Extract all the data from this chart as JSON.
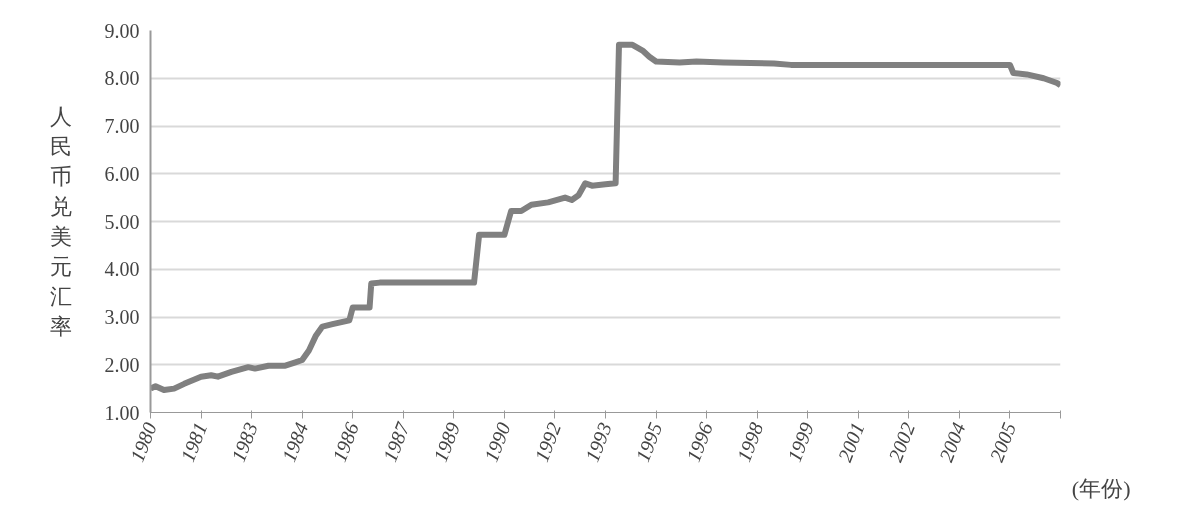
{
  "chart_data": {
    "type": "line",
    "ylabel": "人民币兑美元汇率",
    "xlabel": "(年份)",
    "x": [
      1980.0,
      1980.15,
      1980.4,
      1980.7,
      1981.0,
      1981.5,
      1981.8,
      1982.0,
      1982.4,
      1982.9,
      1983.1,
      1983.5,
      1984.0,
      1984.3,
      1984.5,
      1984.7,
      1984.9,
      1985.1,
      1985.4,
      1985.9,
      1986.0,
      1986.5,
      1986.55,
      1986.8,
      1989.6,
      1989.75,
      1990.5,
      1990.7,
      1991.0,
      1991.3,
      1991.8,
      1992.3,
      1992.5,
      1992.7,
      1992.9,
      1993.1,
      1993.5,
      1993.8,
      1993.9,
      1994.3,
      1994.6,
      1994.8,
      1995.0,
      1995.7,
      1996.2,
      1997.0,
      1998.5,
      1999.0,
      2005.5,
      2005.6,
      2006.0,
      2006.5,
      2006.9,
      2007.0
    ],
    "series": [
      {
        "color": "#808080",
        "values": [
          1.5,
          1.55,
          1.47,
          1.5,
          1.6,
          1.75,
          1.78,
          1.75,
          1.85,
          1.95,
          1.92,
          1.98,
          1.98,
          2.05,
          2.1,
          2.3,
          2.6,
          2.8,
          2.85,
          2.93,
          3.2,
          3.2,
          3.7,
          3.72,
          3.72,
          4.72,
          4.72,
          5.22,
          5.22,
          5.35,
          5.4,
          5.5,
          5.45,
          5.55,
          5.8,
          5.75,
          5.78,
          5.8,
          8.7,
          8.7,
          8.58,
          8.45,
          8.35,
          8.33,
          8.35,
          8.33,
          8.31,
          8.28,
          8.28,
          8.11,
          8.08,
          8.0,
          7.9,
          7.85
        ]
      }
    ],
    "xlim": [
      1980,
      2007
    ],
    "ylim": [
      1,
      9
    ],
    "xticks": [
      {
        "value": 1980,
        "label": "1980"
      },
      {
        "value": 1981.5,
        "label": "1981"
      },
      {
        "value": 1983,
        "label": "1983"
      },
      {
        "value": 1984.5,
        "label": "1984"
      },
      {
        "value": 1986,
        "label": "1986"
      },
      {
        "value": 1987.5,
        "label": "1987"
      },
      {
        "value": 1989,
        "label": "1989"
      },
      {
        "value": 1990.5,
        "label": "1990"
      },
      {
        "value": 1992,
        "label": "1992"
      },
      {
        "value": 1993.5,
        "label": "1993"
      },
      {
        "value": 1995,
        "label": "1995"
      },
      {
        "value": 1996.5,
        "label": "1996"
      },
      {
        "value": 1998,
        "label": "1998"
      },
      {
        "value": 1999.5,
        "label": "1999"
      },
      {
        "value": 2001,
        "label": "2001"
      },
      {
        "value": 2002.5,
        "label": "2002"
      },
      {
        "value": 2004,
        "label": "2004"
      },
      {
        "value": 2005.5,
        "label": "2005"
      },
      {
        "value": 2007,
        "label": null
      }
    ],
    "yticks": [
      {
        "value": 1,
        "label": "1.00"
      },
      {
        "value": 2,
        "label": "2.00"
      },
      {
        "value": 3,
        "label": "3.00"
      },
      {
        "value": 4,
        "label": "4.00"
      },
      {
        "value": 5,
        "label": "5.00"
      },
      {
        "value": 6,
        "label": "6.00"
      },
      {
        "value": 7,
        "label": "7.00"
      },
      {
        "value": 8,
        "label": "8.00"
      },
      {
        "value": 9,
        "label": "9.00"
      }
    ],
    "grid": "y"
  }
}
